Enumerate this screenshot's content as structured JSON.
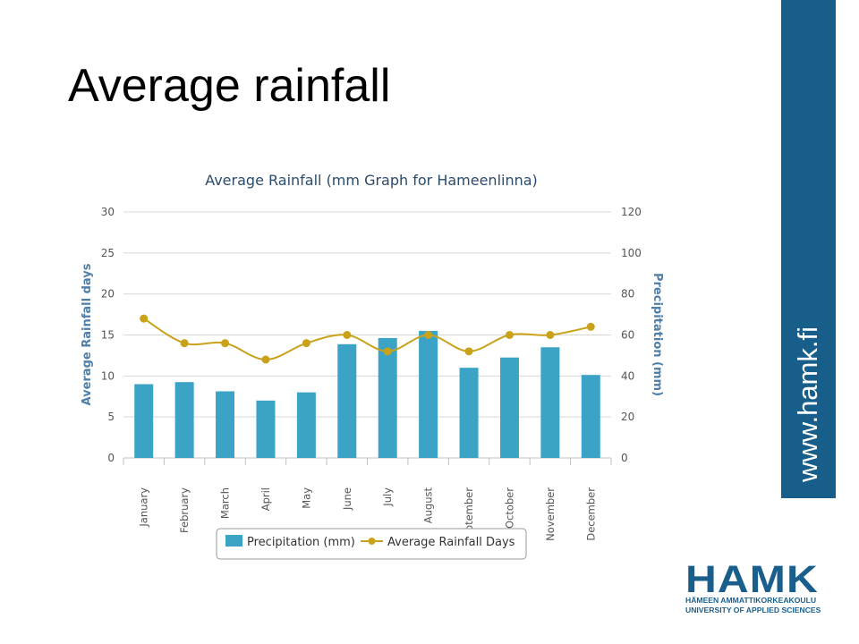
{
  "slide": {
    "title": "Average rainfall",
    "side_text": "www.hamk.fi",
    "logo": {
      "mark": "HAMK",
      "line1": "HÄMEEN AMMATTIKORKEAKOULU",
      "line2": "UNIVERSITY OF APPLIED SCIENCES"
    }
  },
  "chart_data": {
    "type": "bar",
    "title": "Average Rainfall (mm Graph for Hameenlinna)",
    "categories": [
      "January",
      "February",
      "March",
      "April",
      "May",
      "June",
      "July",
      "August",
      "September",
      "October",
      "November",
      "December"
    ],
    "series": [
      {
        "name": "Precipitation (mm)",
        "type": "bar",
        "axis": "right",
        "color": "#3ba3c6",
        "values": [
          36,
          37,
          32.5,
          28,
          32,
          55.5,
          58.5,
          62,
          44,
          49,
          54,
          40.5
        ]
      },
      {
        "name": "Average Rainfall Days",
        "type": "line",
        "axis": "left",
        "color": "#c9a21a",
        "values": [
          17,
          14,
          14,
          12,
          14,
          15,
          13,
          15,
          13,
          15,
          15,
          16
        ]
      }
    ],
    "y_left": {
      "label": "Average Rainfall days",
      "ticks": [
        "0",
        "5",
        "10",
        "15",
        "20",
        "25",
        "30"
      ],
      "range": [
        0,
        30
      ]
    },
    "y_right": {
      "label": "Precipitation (mm)",
      "ticks": [
        "0",
        "20",
        "40",
        "60",
        "80",
        "100",
        "120"
      ],
      "range": [
        0,
        120
      ]
    },
    "grid": true,
    "legend_position": "bottom"
  }
}
